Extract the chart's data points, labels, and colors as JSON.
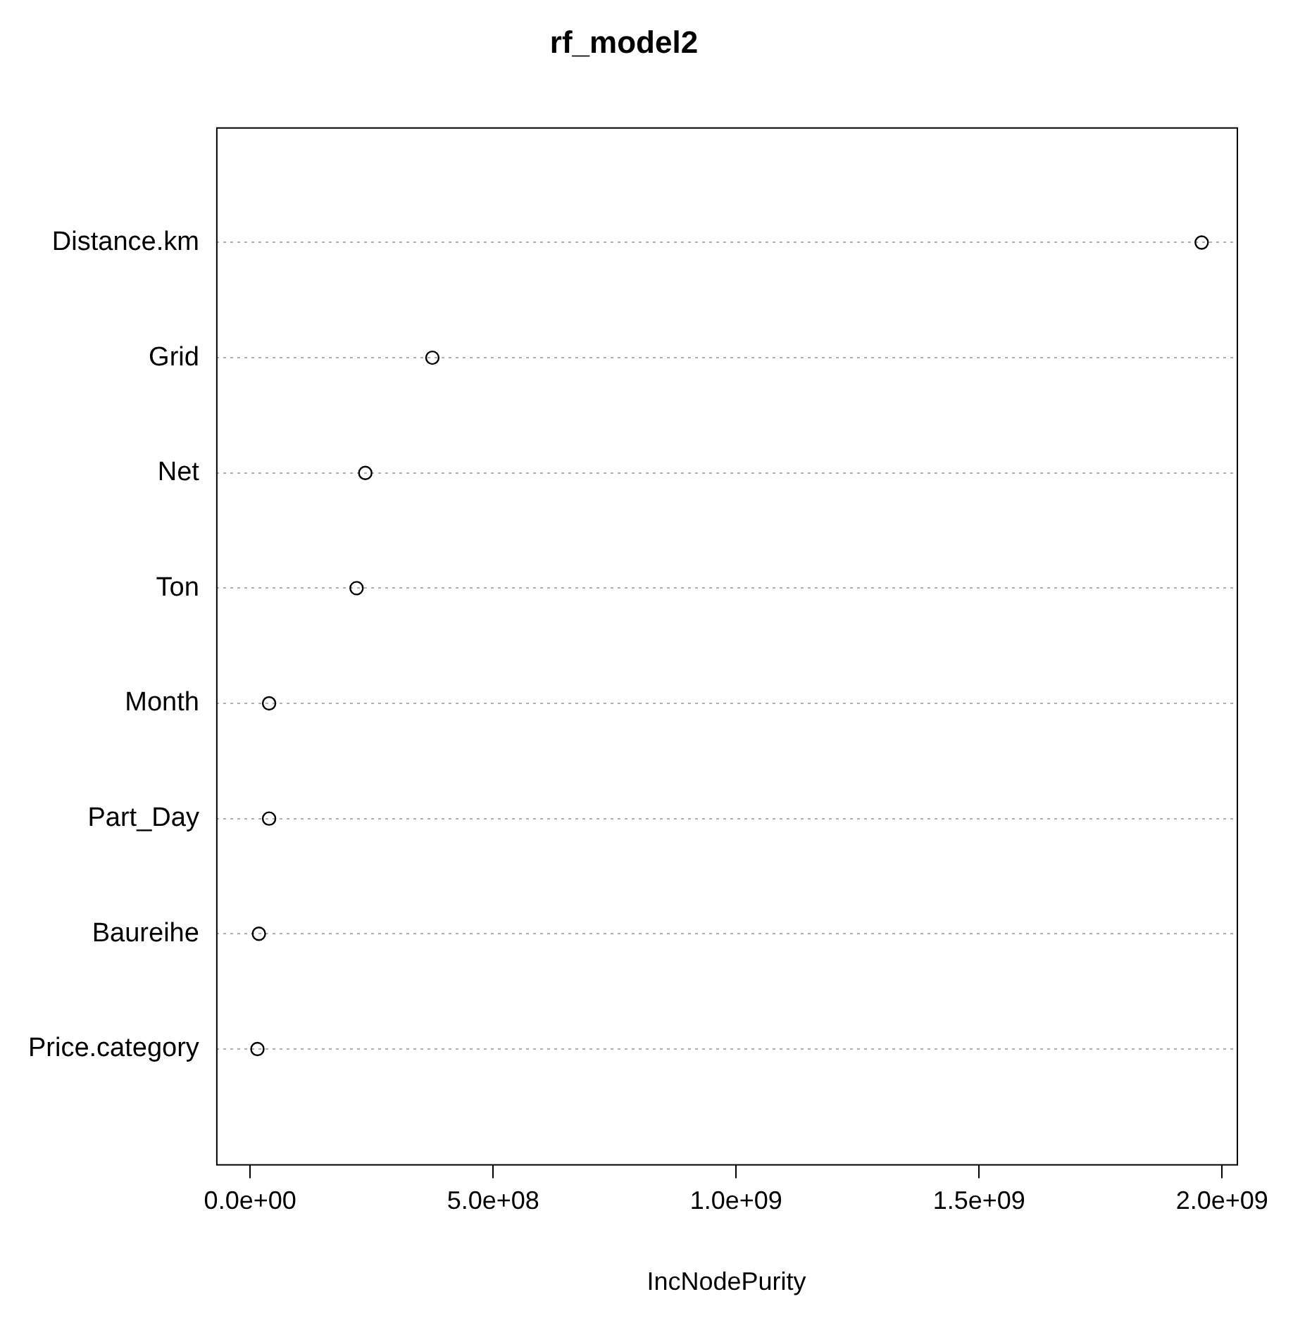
{
  "chart_data": {
    "type": "scatter",
    "orientation": "horizontal",
    "title": "rf_model2",
    "xlabel": "IncNodePurity",
    "categories": [
      "Distance.km",
      "Grid",
      "Net",
      "Ton",
      "Month",
      "Part_Day",
      "Baureihe",
      "Price.category"
    ],
    "values": [
      1958000000.0,
      375000000.0,
      237000000.0,
      219000000.0,
      39000000.0,
      39000000.0,
      18000000.0,
      15000000.0
    ],
    "color": "#000000",
    "marker": "circle",
    "grid": "y",
    "legend": false,
    "xlim": [
      -70000000.0,
      2030000000.0
    ],
    "xticks": [
      {
        "value": 0,
        "label": "0.0e+00"
      },
      {
        "value": 500000000.0,
        "label": "5.0e+08"
      },
      {
        "value": 1000000000.0,
        "label": "1.0e+09"
      },
      {
        "value": 1500000000.0,
        "label": "1.5e+09"
      },
      {
        "value": 2000000000.0,
        "label": "2.0e+09"
      }
    ]
  }
}
